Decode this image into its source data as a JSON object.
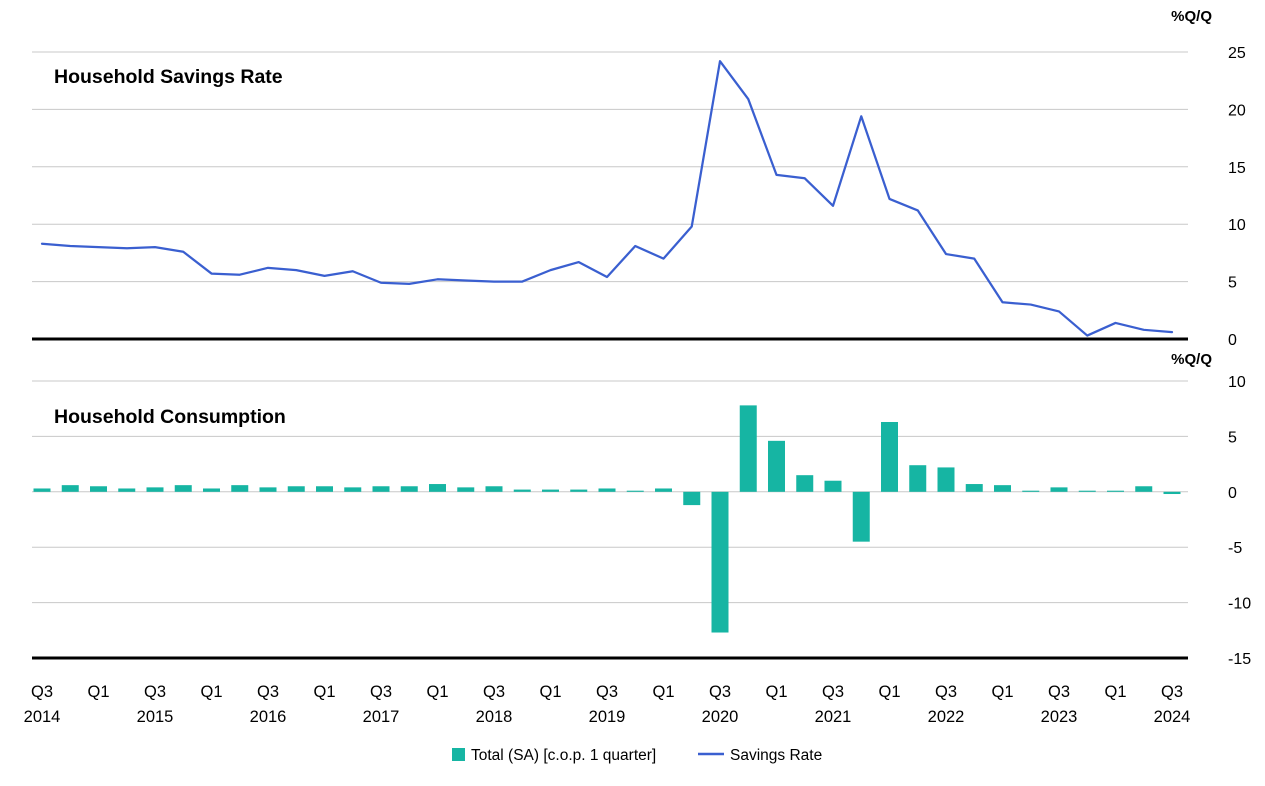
{
  "page": {
    "background": "#ffffff"
  },
  "colors": {
    "line_blue": "#3A5FD0",
    "bar_teal": "#16B5A3",
    "gridline_gray": "#C8C8C8",
    "axis_black": "#000000"
  },
  "x_axis": {
    "quarters": [
      "Q3 2014",
      "Q4 2014",
      "Q1 2015",
      "Q2 2015",
      "Q3 2015",
      "Q4 2015",
      "Q1 2016",
      "Q2 2016",
      "Q3 2016",
      "Q4 2016",
      "Q1 2017",
      "Q2 2017",
      "Q3 2017",
      "Q4 2017",
      "Q1 2018",
      "Q2 2018",
      "Q3 2018",
      "Q4 2018",
      "Q1 2019",
      "Q2 2019",
      "Q3 2019",
      "Q4 2019",
      "Q1 2020",
      "Q2 2020",
      "Q3 2020",
      "Q4 2020",
      "Q1 2021",
      "Q2 2021",
      "Q3 2021",
      "Q4 2021",
      "Q1 2022",
      "Q2 2022",
      "Q3 2022",
      "Q4 2022",
      "Q1 2023",
      "Q2 2023",
      "Q3 2023",
      "Q4 2023",
      "Q1 2024",
      "Q2 2024",
      "Q3 2024"
    ],
    "tick_every": 2,
    "tick_quarter_labels": [
      "Q3",
      "Q1",
      "Q3",
      "Q1",
      "Q3",
      "Q1",
      "Q3",
      "Q1",
      "Q3",
      "Q1",
      "Q3",
      "Q1",
      "Q3",
      "Q1",
      "Q3",
      "Q1",
      "Q3",
      "Q1",
      "Q3",
      "Q1",
      "Q3"
    ],
    "tick_year_labels": [
      "2014",
      "2015",
      "2016",
      "2017",
      "2018",
      "2019",
      "2020",
      "2021",
      "2022",
      "2023",
      "2024"
    ]
  },
  "chart_data": [
    {
      "type": "line",
      "title": "Household Savings Rate",
      "unit_label": "%Q/Q",
      "ylim": [
        0,
        25
      ],
      "yticks": [
        0,
        5,
        10,
        15,
        20,
        25
      ],
      "grid": true,
      "y_axis_side": "right",
      "series": [
        {
          "name": "Savings Rate",
          "color": "#3A5FD0",
          "values": [
            8.3,
            8.1,
            8.0,
            7.9,
            8.0,
            7.6,
            5.7,
            5.6,
            6.2,
            6.0,
            5.5,
            5.9,
            4.9,
            4.8,
            5.2,
            5.1,
            5.0,
            5.0,
            6.0,
            6.7,
            5.4,
            8.1,
            7.0,
            9.8,
            24.2,
            20.9,
            14.3,
            14.0,
            11.6,
            19.4,
            12.2,
            11.2,
            7.4,
            7.0,
            3.2,
            3.0,
            2.4,
            0.3,
            1.4,
            0.8,
            0.6
          ]
        }
      ]
    },
    {
      "type": "bar",
      "title": "Household Consumption",
      "unit_label": "%Q/Q",
      "ylim": [
        -15,
        10
      ],
      "yticks": [
        -15,
        -10,
        -5,
        0,
        5,
        10
      ],
      "grid": true,
      "y_axis_side": "right",
      "series": [
        {
          "name": "Total (SA) [c.o.p. 1 quarter]",
          "color": "#16B5A3",
          "values": [
            0.3,
            0.6,
            0.5,
            0.3,
            0.4,
            0.6,
            0.3,
            0.6,
            0.4,
            0.5,
            0.5,
            0.4,
            0.5,
            0.5,
            0.7,
            0.4,
            0.5,
            0.2,
            0.2,
            0.2,
            0.3,
            0.1,
            0.3,
            -1.2,
            -12.7,
            7.8,
            4.6,
            1.5,
            1.0,
            -4.5,
            6.3,
            2.4,
            2.2,
            0.7,
            0.6,
            0.1,
            0.4,
            0.1,
            0.1,
            0.5,
            -0.2
          ]
        }
      ]
    }
  ],
  "legend": {
    "items": [
      {
        "label": "Total (SA) [c.o.p. 1 quarter]",
        "swatch": "square",
        "color": "#16B5A3"
      },
      {
        "label": "Savings Rate",
        "swatch": "line",
        "color": "#3A5FD0"
      }
    ]
  }
}
